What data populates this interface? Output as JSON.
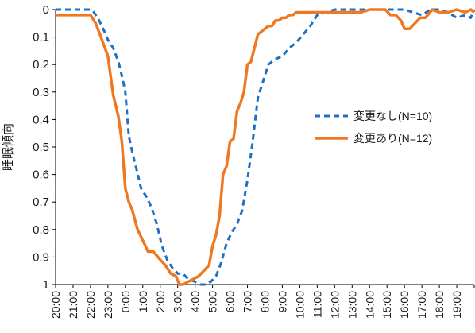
{
  "chart_data": {
    "type": "line",
    "title": "",
    "xlabel": "",
    "ylabel": "睡眠傾向",
    "ylim": [
      0,
      1
    ],
    "y_inverted": true,
    "y_ticks": [
      "0",
      "0.1",
      "0.2",
      "0.3",
      "0.4",
      "0.5",
      "0.6",
      "0.7",
      "0.8",
      "0.9",
      "1"
    ],
    "x_ticks": [
      "20:00",
      "21:00",
      "22:00",
      "23:00",
      "0:00",
      "1:00",
      "2:00",
      "3:00",
      "4:00",
      "5:00",
      "6:00",
      "7:00",
      "8:00",
      "9:00",
      "10:00",
      "11:00",
      "12:00",
      "13:00",
      "14:00",
      "15:00",
      "16:00",
      "17:00",
      "18:00",
      "19:00"
    ],
    "x_range_hours": [
      20,
      44
    ],
    "grid": false,
    "legend_position": "right",
    "series": [
      {
        "name": "変更なし(N=10)",
        "color": "#1f6fc5",
        "style": "dashed",
        "x": [
          20.0,
          21.0,
          22.0,
          22.2,
          22.5,
          22.8,
          23.0,
          23.3,
          23.6,
          23.8,
          24.0,
          24.2,
          24.4,
          24.6,
          24.9,
          25.2,
          25.5,
          25.8,
          26.1,
          26.4,
          26.7,
          27.0,
          27.3,
          27.6,
          28.0,
          28.3,
          28.6,
          28.9,
          29.2,
          29.5,
          29.8,
          30.1,
          30.4,
          30.7,
          31.0,
          31.3,
          31.6,
          31.9,
          32.2,
          32.6,
          33.0,
          33.4,
          33.8,
          34.2,
          34.6,
          35.0,
          35.5,
          36.0,
          37.0,
          38.0,
          39.0,
          40.0,
          40.5,
          41.0,
          41.5,
          42.0,
          42.5,
          43.0,
          43.5,
          43.8,
          44.0
        ],
        "values": [
          0.0,
          0.0,
          0.0,
          0.01,
          0.04,
          0.08,
          0.11,
          0.14,
          0.19,
          0.24,
          0.3,
          0.46,
          0.52,
          0.57,
          0.65,
          0.68,
          0.72,
          0.78,
          0.86,
          0.91,
          0.94,
          0.96,
          0.96,
          0.98,
          0.99,
          1.0,
          1.0,
          0.99,
          0.97,
          0.92,
          0.85,
          0.81,
          0.78,
          0.73,
          0.62,
          0.48,
          0.32,
          0.26,
          0.2,
          0.18,
          0.17,
          0.14,
          0.12,
          0.09,
          0.06,
          0.02,
          0.01,
          0.0,
          0.0,
          0.0,
          0.0,
          0.0,
          0.01,
          0.02,
          0.0,
          0.0,
          0.01,
          0.03,
          0.02,
          0.03,
          0.0
        ]
      },
      {
        "name": "変更あり(N=12)",
        "color": "#f07820",
        "style": "solid",
        "x": [
          20.0,
          21.0,
          22.0,
          22.3,
          22.6,
          23.0,
          23.3,
          23.6,
          23.8,
          24.0,
          24.2,
          24.4,
          24.7,
          25.0,
          25.3,
          25.6,
          26.0,
          26.3,
          26.6,
          26.9,
          27.1,
          27.3,
          27.6,
          27.9,
          28.2,
          28.5,
          28.8,
          29.0,
          29.2,
          29.4,
          29.6,
          29.8,
          30.0,
          30.2,
          30.4,
          30.6,
          30.8,
          31.0,
          31.2,
          31.4,
          31.6,
          31.8,
          32.0,
          32.2,
          32.4,
          32.6,
          32.8,
          33.0,
          33.2,
          33.4,
          33.6,
          33.8,
          34.0,
          34.5,
          35.0,
          36.0,
          37.0,
          37.5,
          38.0,
          38.3,
          38.6,
          38.9,
          39.2,
          39.5,
          39.8,
          40.0,
          40.3,
          40.6,
          40.9,
          41.2,
          41.6,
          42.0,
          42.5,
          43.0,
          43.5,
          43.8,
          44.0
        ],
        "values": [
          0.02,
          0.02,
          0.02,
          0.05,
          0.1,
          0.17,
          0.31,
          0.39,
          0.48,
          0.65,
          0.7,
          0.73,
          0.8,
          0.84,
          0.88,
          0.88,
          0.91,
          0.93,
          0.96,
          0.97,
          1.0,
          1.0,
          0.99,
          0.98,
          0.97,
          0.95,
          0.93,
          0.86,
          0.82,
          0.75,
          0.6,
          0.57,
          0.48,
          0.47,
          0.37,
          0.34,
          0.3,
          0.2,
          0.19,
          0.14,
          0.09,
          0.08,
          0.07,
          0.06,
          0.06,
          0.04,
          0.04,
          0.03,
          0.03,
          0.02,
          0.02,
          0.01,
          0.01,
          0.01,
          0.01,
          0.01,
          0.01,
          0.01,
          0.0,
          0.0,
          0.0,
          0.0,
          0.02,
          0.02,
          0.04,
          0.07,
          0.07,
          0.05,
          0.03,
          0.03,
          0.0,
          0.01,
          0.01,
          0.0,
          0.01,
          0.0,
          0.01
        ]
      }
    ]
  }
}
